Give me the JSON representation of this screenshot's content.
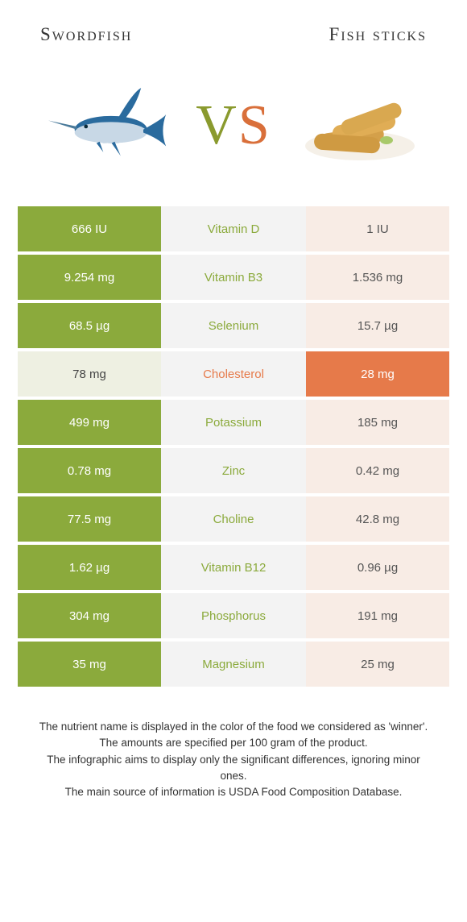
{
  "colors": {
    "green": "#8baa3c",
    "orange": "#e67a4a",
    "lt_green": "#eef0e2",
    "lt_orange": "#f8ece5",
    "mid_bg": "#f3f3f3",
    "vs_green": "#8a9a2e",
    "vs_orange": "#d96f3a"
  },
  "header": {
    "left": "Swordfish",
    "right": "Fish sticks"
  },
  "vs": {
    "v": "V",
    "s": "S"
  },
  "rows": [
    {
      "left": "666 IU",
      "label": "Vitamin D",
      "right": "1 IU",
      "winner": "left"
    },
    {
      "left": "9.254 mg",
      "label": "Vitamin B3",
      "right": "1.536 mg",
      "winner": "left"
    },
    {
      "left": "68.5 µg",
      "label": "Selenium",
      "right": "15.7 µg",
      "winner": "left"
    },
    {
      "left": "78 mg",
      "label": "Cholesterol",
      "right": "28 mg",
      "winner": "right"
    },
    {
      "left": "499 mg",
      "label": "Potassium",
      "right": "185 mg",
      "winner": "left"
    },
    {
      "left": "0.78 mg",
      "label": "Zinc",
      "right": "0.42 mg",
      "winner": "left"
    },
    {
      "left": "77.5 mg",
      "label": "Choline",
      "right": "42.8 mg",
      "winner": "left"
    },
    {
      "left": "1.62 µg",
      "label": "Vitamin B12",
      "right": "0.96 µg",
      "winner": "left"
    },
    {
      "left": "304 mg",
      "label": "Phosphorus",
      "right": "191 mg",
      "winner": "left"
    },
    {
      "left": "35 mg",
      "label": "Magnesium",
      "right": "25 mg",
      "winner": "left"
    }
  ],
  "notes": {
    "l1": "The nutrient name is displayed in the color of the food we considered as 'winner'.",
    "l2": "The amounts are specified per 100 gram of the product.",
    "l3": "The infographic aims to display only the significant differences, ignoring minor ones.",
    "l4": "The main source of information is USDA Food Composition Database."
  }
}
